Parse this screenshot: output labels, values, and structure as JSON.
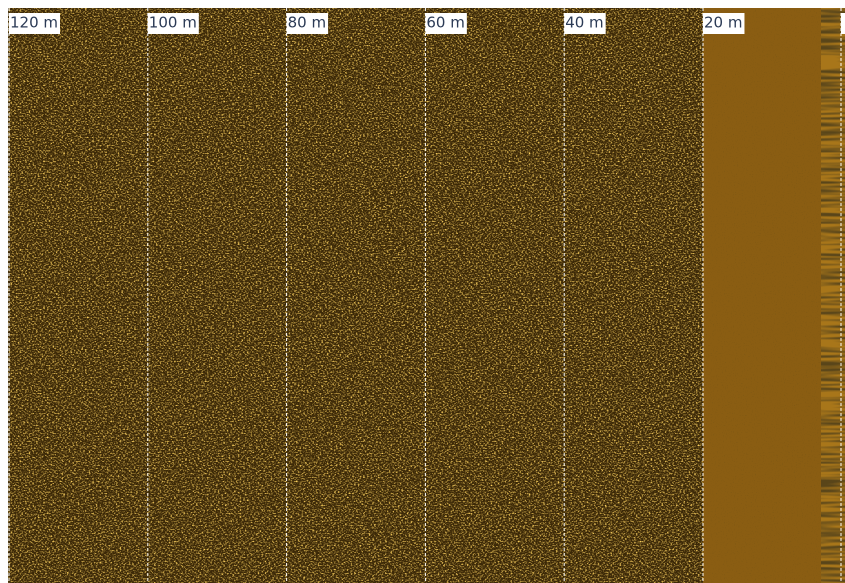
{
  "range_labels": [
    "120 m",
    "100 m",
    "80 m",
    "60 m",
    "40 m",
    "20 m"
  ]
}
